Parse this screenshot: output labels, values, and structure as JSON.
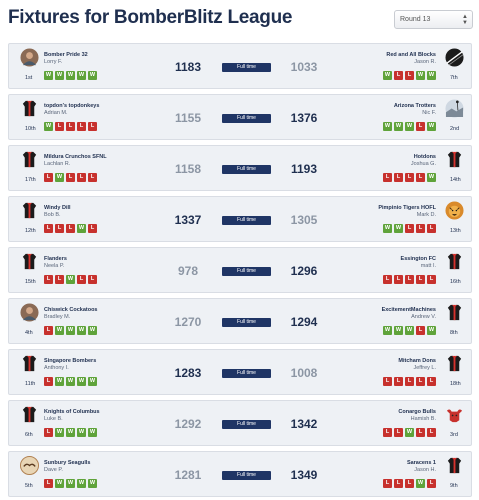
{
  "page": {
    "title": "Fixtures for BomberBlitz League",
    "round_select": "Round 13"
  },
  "fixtures": [
    {
      "status": "Full time",
      "home": {
        "team": "Bomber Pride 32",
        "coach": "Lorry F.",
        "rank": "1st",
        "score": "1183",
        "form": [
          "W",
          "W",
          "W",
          "W",
          "W"
        ],
        "avatar": "photo-avatar"
      },
      "away": {
        "team": "Red and All Blocks",
        "coach": "Jason R.",
        "rank": "7th",
        "score": "1033",
        "form": [
          "W",
          "L",
          "L",
          "W",
          "W"
        ],
        "avatar": "soccer-ball-avatar"
      }
    },
    {
      "status": "Full time",
      "home": {
        "team": "topdon's topdonkeys",
        "coach": "Adrian M.",
        "rank": "10th",
        "score": "1155",
        "form": [
          "W",
          "L",
          "L",
          "L",
          "L"
        ],
        "avatar": "jersey-avatar"
      },
      "away": {
        "team": "Arizona Trotters",
        "coach": "Nic F.",
        "rank": "2nd",
        "score": "1376",
        "form": [
          "W",
          "W",
          "W",
          "L",
          "W"
        ],
        "avatar": "landscape-avatar"
      }
    },
    {
      "status": "Full time",
      "home": {
        "team": "Mildura Crunchos SFNL",
        "coach": "Lachlan R.",
        "rank": "17th",
        "score": "1158",
        "form": [
          "L",
          "W",
          "L",
          "L",
          "L"
        ],
        "avatar": "jersey-avatar"
      },
      "away": {
        "team": "Hotdons",
        "coach": "Joshua G.",
        "rank": "14th",
        "score": "1193",
        "form": [
          "L",
          "L",
          "L",
          "L",
          "W"
        ],
        "avatar": "jersey-avatar"
      }
    },
    {
      "status": "Full time",
      "home": {
        "team": "Windy Dill",
        "coach": "Bob B.",
        "rank": "12th",
        "score": "1337",
        "form": [
          "L",
          "L",
          "L",
          "W",
          "L"
        ],
        "avatar": "jersey-avatar"
      },
      "away": {
        "team": "Pimpinio Tigers HOFL",
        "coach": "Mark D.",
        "rank": "13th",
        "score": "1305",
        "form": [
          "W",
          "W",
          "L",
          "L",
          "L"
        ],
        "avatar": "tiger-avatar"
      }
    },
    {
      "status": "Full time",
      "home": {
        "team": "Flanders",
        "coach": "Neela P.",
        "rank": "15th",
        "score": "978",
        "form": [
          "L",
          "L",
          "W",
          "L",
          "L"
        ],
        "avatar": "jersey-avatar"
      },
      "away": {
        "team": "Essington FC",
        "coach": "matt I.",
        "rank": "16th",
        "score": "1296",
        "form": [
          "L",
          "L",
          "L",
          "L",
          "L"
        ],
        "avatar": "jersey-avatar"
      }
    },
    {
      "status": "Full time",
      "home": {
        "team": "Chiswick Cockatoos",
        "coach": "Bradley M.",
        "rank": "4th",
        "score": "1270",
        "form": [
          "L",
          "W",
          "W",
          "W",
          "W"
        ],
        "avatar": "photo-avatar"
      },
      "away": {
        "team": "ExcitementMachines",
        "coach": "Andrew V.",
        "rank": "8th",
        "score": "1294",
        "form": [
          "W",
          "W",
          "W",
          "L",
          "W"
        ],
        "avatar": "jersey-avatar"
      }
    },
    {
      "status": "Full time",
      "home": {
        "team": "Singapore Bombers",
        "coach": "Anthony I.",
        "rank": "11th",
        "score": "1283",
        "form": [
          "L",
          "W",
          "W",
          "W",
          "W"
        ],
        "avatar": "jersey-avatar"
      },
      "away": {
        "team": "Mitcham Dons",
        "coach": "Jeffrey L.",
        "rank": "18th",
        "score": "1008",
        "form": [
          "L",
          "L",
          "L",
          "L",
          "L"
        ],
        "avatar": "jersey-avatar"
      }
    },
    {
      "status": "Full time",
      "home": {
        "team": "Knights of Columbus",
        "coach": "Luke B.",
        "rank": "6th",
        "score": "1292",
        "form": [
          "L",
          "W",
          "W",
          "W",
          "W"
        ],
        "avatar": "jersey-avatar"
      },
      "away": {
        "team": "Conargo Bulls",
        "coach": "Hamish B.",
        "rank": "3rd",
        "score": "1342",
        "form": [
          "L",
          "L",
          "W",
          "L",
          "L"
        ],
        "avatar": "bull-avatar"
      }
    },
    {
      "status": "Full time",
      "home": {
        "team": "Sunbury Seagulls",
        "coach": "Dave P.",
        "rank": "5th",
        "score": "1281",
        "form": [
          "L",
          "W",
          "W",
          "W",
          "W"
        ],
        "avatar": "seagull-avatar"
      },
      "away": {
        "team": "Saracens 1",
        "coach": "Jason H.",
        "rank": "9th",
        "score": "1349",
        "form": [
          "L",
          "L",
          "L",
          "W",
          "L"
        ],
        "avatar": "jersey-avatar"
      }
    }
  ]
}
